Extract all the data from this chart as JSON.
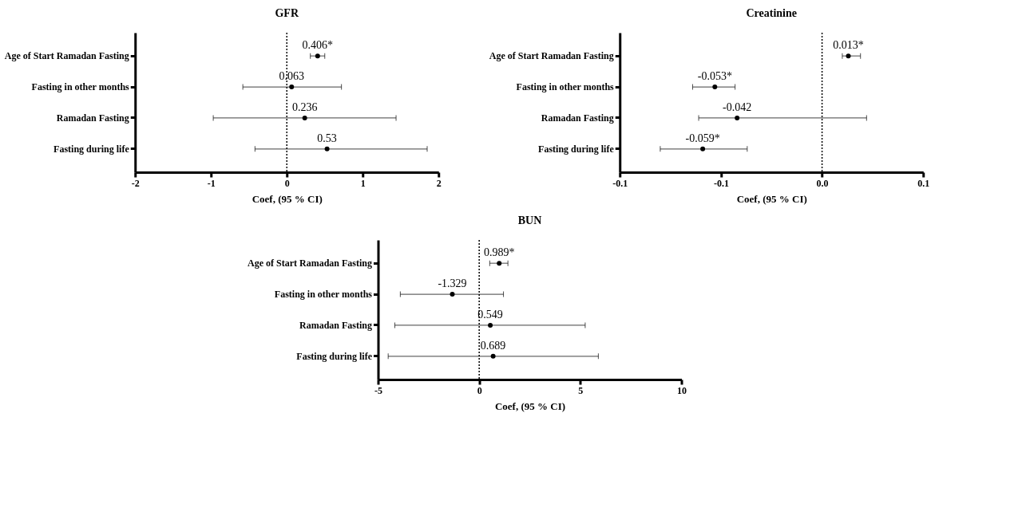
{
  "chart_data": [
    {
      "type": "scatter",
      "orientation": "horizontal",
      "title": "GFR",
      "xlabel": "Coef, (95 % CI)",
      "categories": [
        "Age of Start Ramadan Fasting",
        "Fasting in other months",
        "Ramadan Fasting",
        "Fasting during life"
      ],
      "series": [
        {
          "color": "#000000",
          "values": [
            0.406,
            0.063,
            0.236,
            0.53
          ],
          "errors": [
            [
              0.31,
              0.5
            ],
            [
              -0.58,
              0.72
            ],
            [
              -0.97,
              1.44
            ],
            [
              -0.42,
              1.85
            ]
          ],
          "value_labels": [
            "0.406*",
            "0.063",
            "0.236",
            "0.53"
          ]
        }
      ],
      "xlim": [
        -2,
        2
      ],
      "xticks": [
        -2,
        -1,
        0,
        1,
        2
      ],
      "ref_lines": [
        {
          "axis": "x",
          "value": 0,
          "line_style": "dotted",
          "color": "#000000"
        }
      ]
    },
    {
      "type": "scatter",
      "orientation": "horizontal",
      "title": "Creatinine",
      "xlabel": "Coef, (95 % CI)",
      "categories": [
        "Age of Start Ramadan Fasting",
        "Fasting in other months",
        "Ramadan Fasting",
        "Fasting during life"
      ],
      "series": [
        {
          "color": "#000000",
          "values": [
            0.013,
            -0.053,
            -0.042,
            -0.059
          ],
          "errors": [
            [
              0.01,
              0.019
            ],
            [
              -0.064,
              -0.043
            ],
            [
              -0.061,
              0.022
            ],
            [
              -0.08,
              -0.037
            ]
          ],
          "value_labels": [
            "0.013*",
            "-0.053*",
            "-0.042",
            "-0.059*"
          ]
        }
      ],
      "xlim": [
        -0.1,
        0.05
      ],
      "xticks": [
        {
          "value": -0.1,
          "label": "-0.1"
        },
        {
          "value": -0.05,
          "label": "-0.1"
        },
        {
          "value": 0,
          "label": "0.0"
        },
        {
          "value": 0.05,
          "label": "0.1"
        }
      ],
      "ref_lines": [
        {
          "axis": "x",
          "value": 0,
          "line_style": "dotted",
          "color": "#000000"
        }
      ]
    },
    {
      "type": "scatter",
      "orientation": "horizontal",
      "title": "BUN",
      "xlabel": "Coef, (95 % CI)",
      "categories": [
        "Age of Start Ramadan Fasting",
        "Fasting in other months",
        "Ramadan Fasting",
        "Fasting during life"
      ],
      "series": [
        {
          "color": "#000000",
          "values": [
            0.989,
            -1.329,
            0.549,
            0.689
          ],
          "errors": [
            [
              0.52,
              1.42
            ],
            [
              -3.9,
              1.2
            ],
            [
              -4.17,
              5.24
            ],
            [
              -4.5,
              5.89
            ]
          ],
          "value_labels": [
            "0.989*",
            "-1.329",
            "0.549",
            "0.689"
          ]
        }
      ],
      "xlim": [
        -5,
        10
      ],
      "xticks": [
        -5,
        0,
        5,
        10
      ],
      "ref_lines": [
        {
          "axis": "x",
          "value": 0,
          "line_style": "dotted",
          "color": "#000000"
        }
      ]
    }
  ]
}
